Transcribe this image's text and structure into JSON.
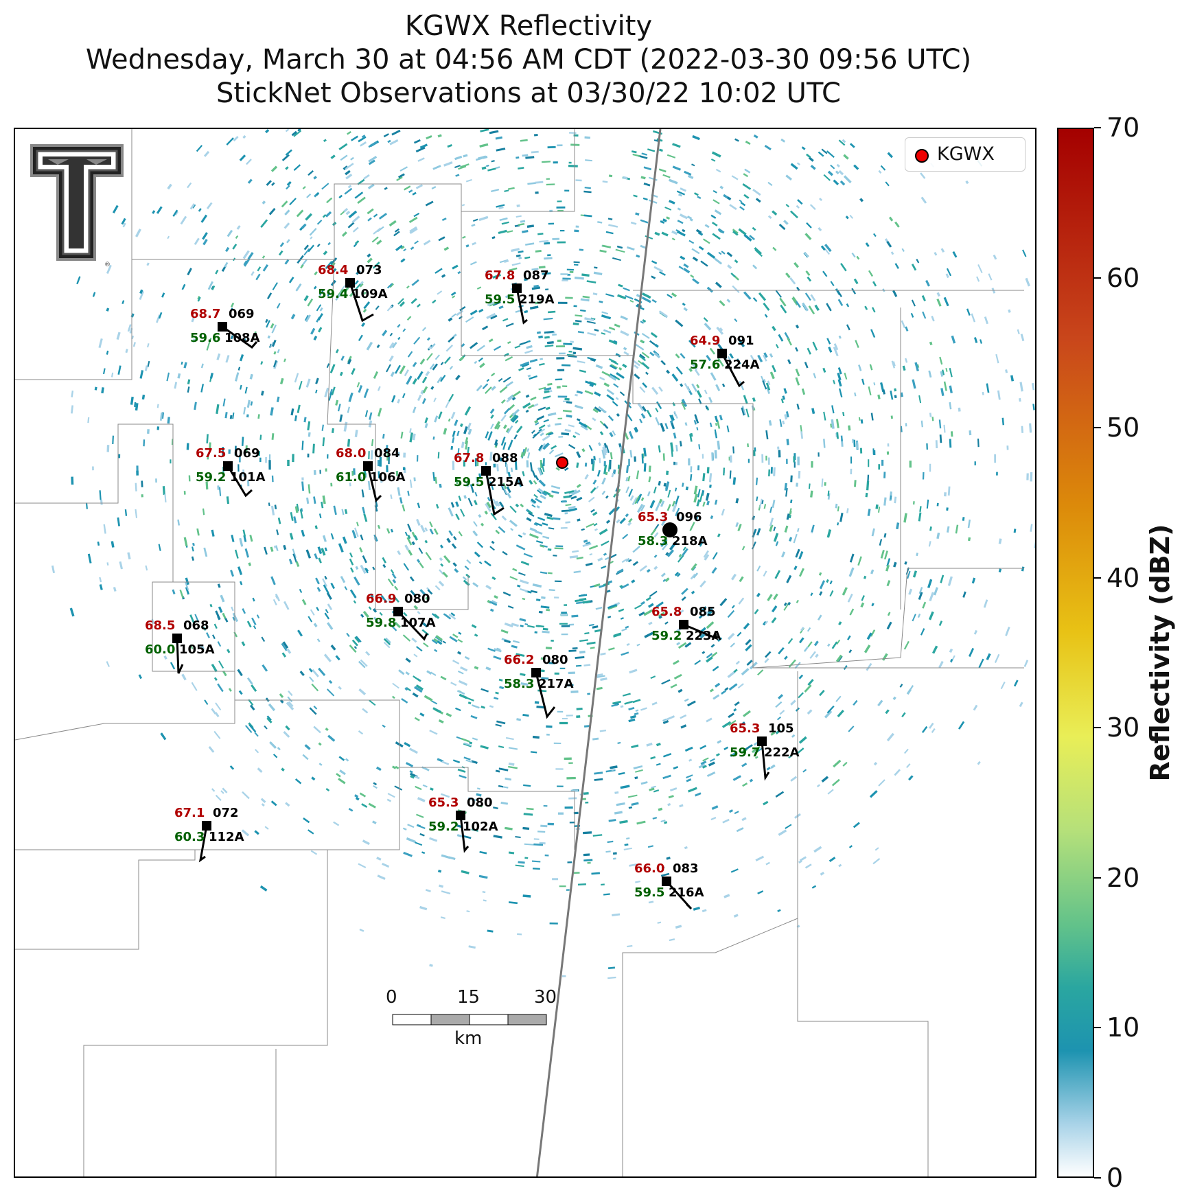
{
  "title": {
    "line1": "KGWX Reflectivity",
    "line2": "Wednesday, March 30 at 04:56 AM CDT (2022-03-30 09:56 UTC)",
    "line3": "StickNet Observations at 03/30/22 10:02 UTC"
  },
  "legend": {
    "label": "KGWX",
    "marker_color": "#ee0000"
  },
  "colorbar": {
    "label": "Reflectivity (dBZ)",
    "ticks": [
      "0",
      "10",
      "20",
      "30",
      "40",
      "50",
      "60",
      "70"
    ],
    "range": [
      0,
      70
    ]
  },
  "scale_bar": {
    "ticks": [
      "0",
      "15",
      "30"
    ],
    "unit": "km"
  },
  "stations": [
    {
      "id": "109A",
      "temp": "68.4",
      "dew": "59.4",
      "dir": "073"
    },
    {
      "id": "219A",
      "temp": "67.8",
      "dew": "59.5",
      "dir": "087"
    },
    {
      "id": "108A",
      "temp": "68.7",
      "dew": "59.6",
      "dir": "069"
    },
    {
      "id": "224A",
      "temp": "64.9",
      "dew": "57.6",
      "dir": "091"
    },
    {
      "id": "101A",
      "temp": "67.5",
      "dew": "59.2",
      "dir": "069"
    },
    {
      "id": "106A",
      "temp": "68.0",
      "dew": "61.0",
      "dir": "084"
    },
    {
      "id": "215A",
      "temp": "67.8",
      "dew": "59.5",
      "dir": "088"
    },
    {
      "id": "218A",
      "temp": "65.3",
      "dew": "58.3",
      "dir": "096"
    },
    {
      "id": "107A",
      "temp": "66.9",
      "dew": "59.8",
      "dir": "080"
    },
    {
      "id": "223A",
      "temp": "65.8",
      "dew": "59.2",
      "dir": "085"
    },
    {
      "id": "105A",
      "temp": "68.5",
      "dew": "60.0",
      "dir": "068"
    },
    {
      "id": "217A",
      "temp": "66.2",
      "dew": "58.3",
      "dir": "080"
    },
    {
      "id": "222A",
      "temp": "65.3",
      "dew": "59.7",
      "dir": "105"
    },
    {
      "id": "102A",
      "temp": "65.3",
      "dew": "59.2",
      "dir": "080"
    },
    {
      "id": "112A",
      "temp": "67.1",
      "dew": "60.3",
      "dir": "072"
    },
    {
      "id": "216A",
      "temp": "66.0",
      "dew": "59.5",
      "dir": "083"
    }
  ],
  "colors": {
    "temp": "#b00000",
    "dew": "#006000",
    "radar_low": "#a9d3e8",
    "radar_mid": "#1d93b0",
    "radar_green": "#62c28a"
  }
}
